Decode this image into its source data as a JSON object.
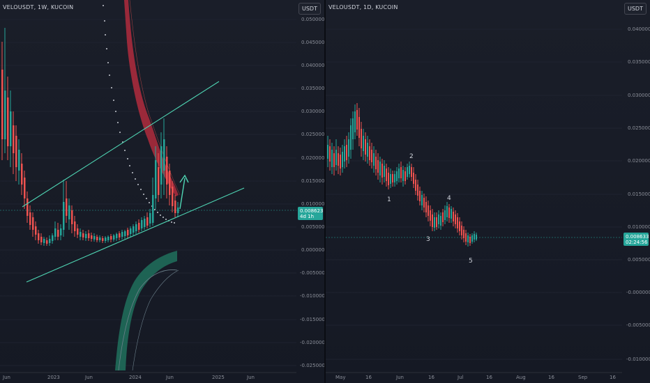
{
  "colors": {
    "up": "#26a69a",
    "down": "#ef5350",
    "trendline": "#4fd6b4",
    "price_tag": "#26a69a"
  },
  "left_chart": {
    "symbol": "VELOUSDT, 1W, KUCOIN",
    "currency": "USDT",
    "price_axis": [
      "0.050000",
      "0.045000",
      "0.040000",
      "0.035000",
      "0.030000",
      "0.025000",
      "0.020000",
      "0.015000",
      "0.010000",
      "0.005000",
      "0.000000",
      "-0.005000",
      "-0.010000",
      "-0.015000",
      "-0.020000",
      "-0.025000"
    ],
    "time_axis": [
      "Jun",
      "2023",
      "Jun",
      "2024",
      "Jun",
      "2025",
      "Jun"
    ],
    "current_price": "0.008623",
    "countdown": "4d 1h"
  },
  "right_chart": {
    "symbol": "VELOUSDT, 1D, KUCOIN",
    "currency": "USDT",
    "price_axis": [
      "0.040000",
      "0.035000",
      "0.030000",
      "0.025000",
      "0.020000",
      "0.015000",
      "0.010000",
      "0.005000",
      "-0.000000",
      "-0.005000",
      "-0.010000"
    ],
    "time_axis": [
      "May",
      "16",
      "Jun",
      "16",
      "Jul",
      "16",
      "Aug",
      "16",
      "Sep",
      "16"
    ],
    "current_price": "0.008633",
    "countdown": "02:24:56",
    "wave_labels": [
      "1",
      "2",
      "3",
      "4",
      "5"
    ]
  }
}
